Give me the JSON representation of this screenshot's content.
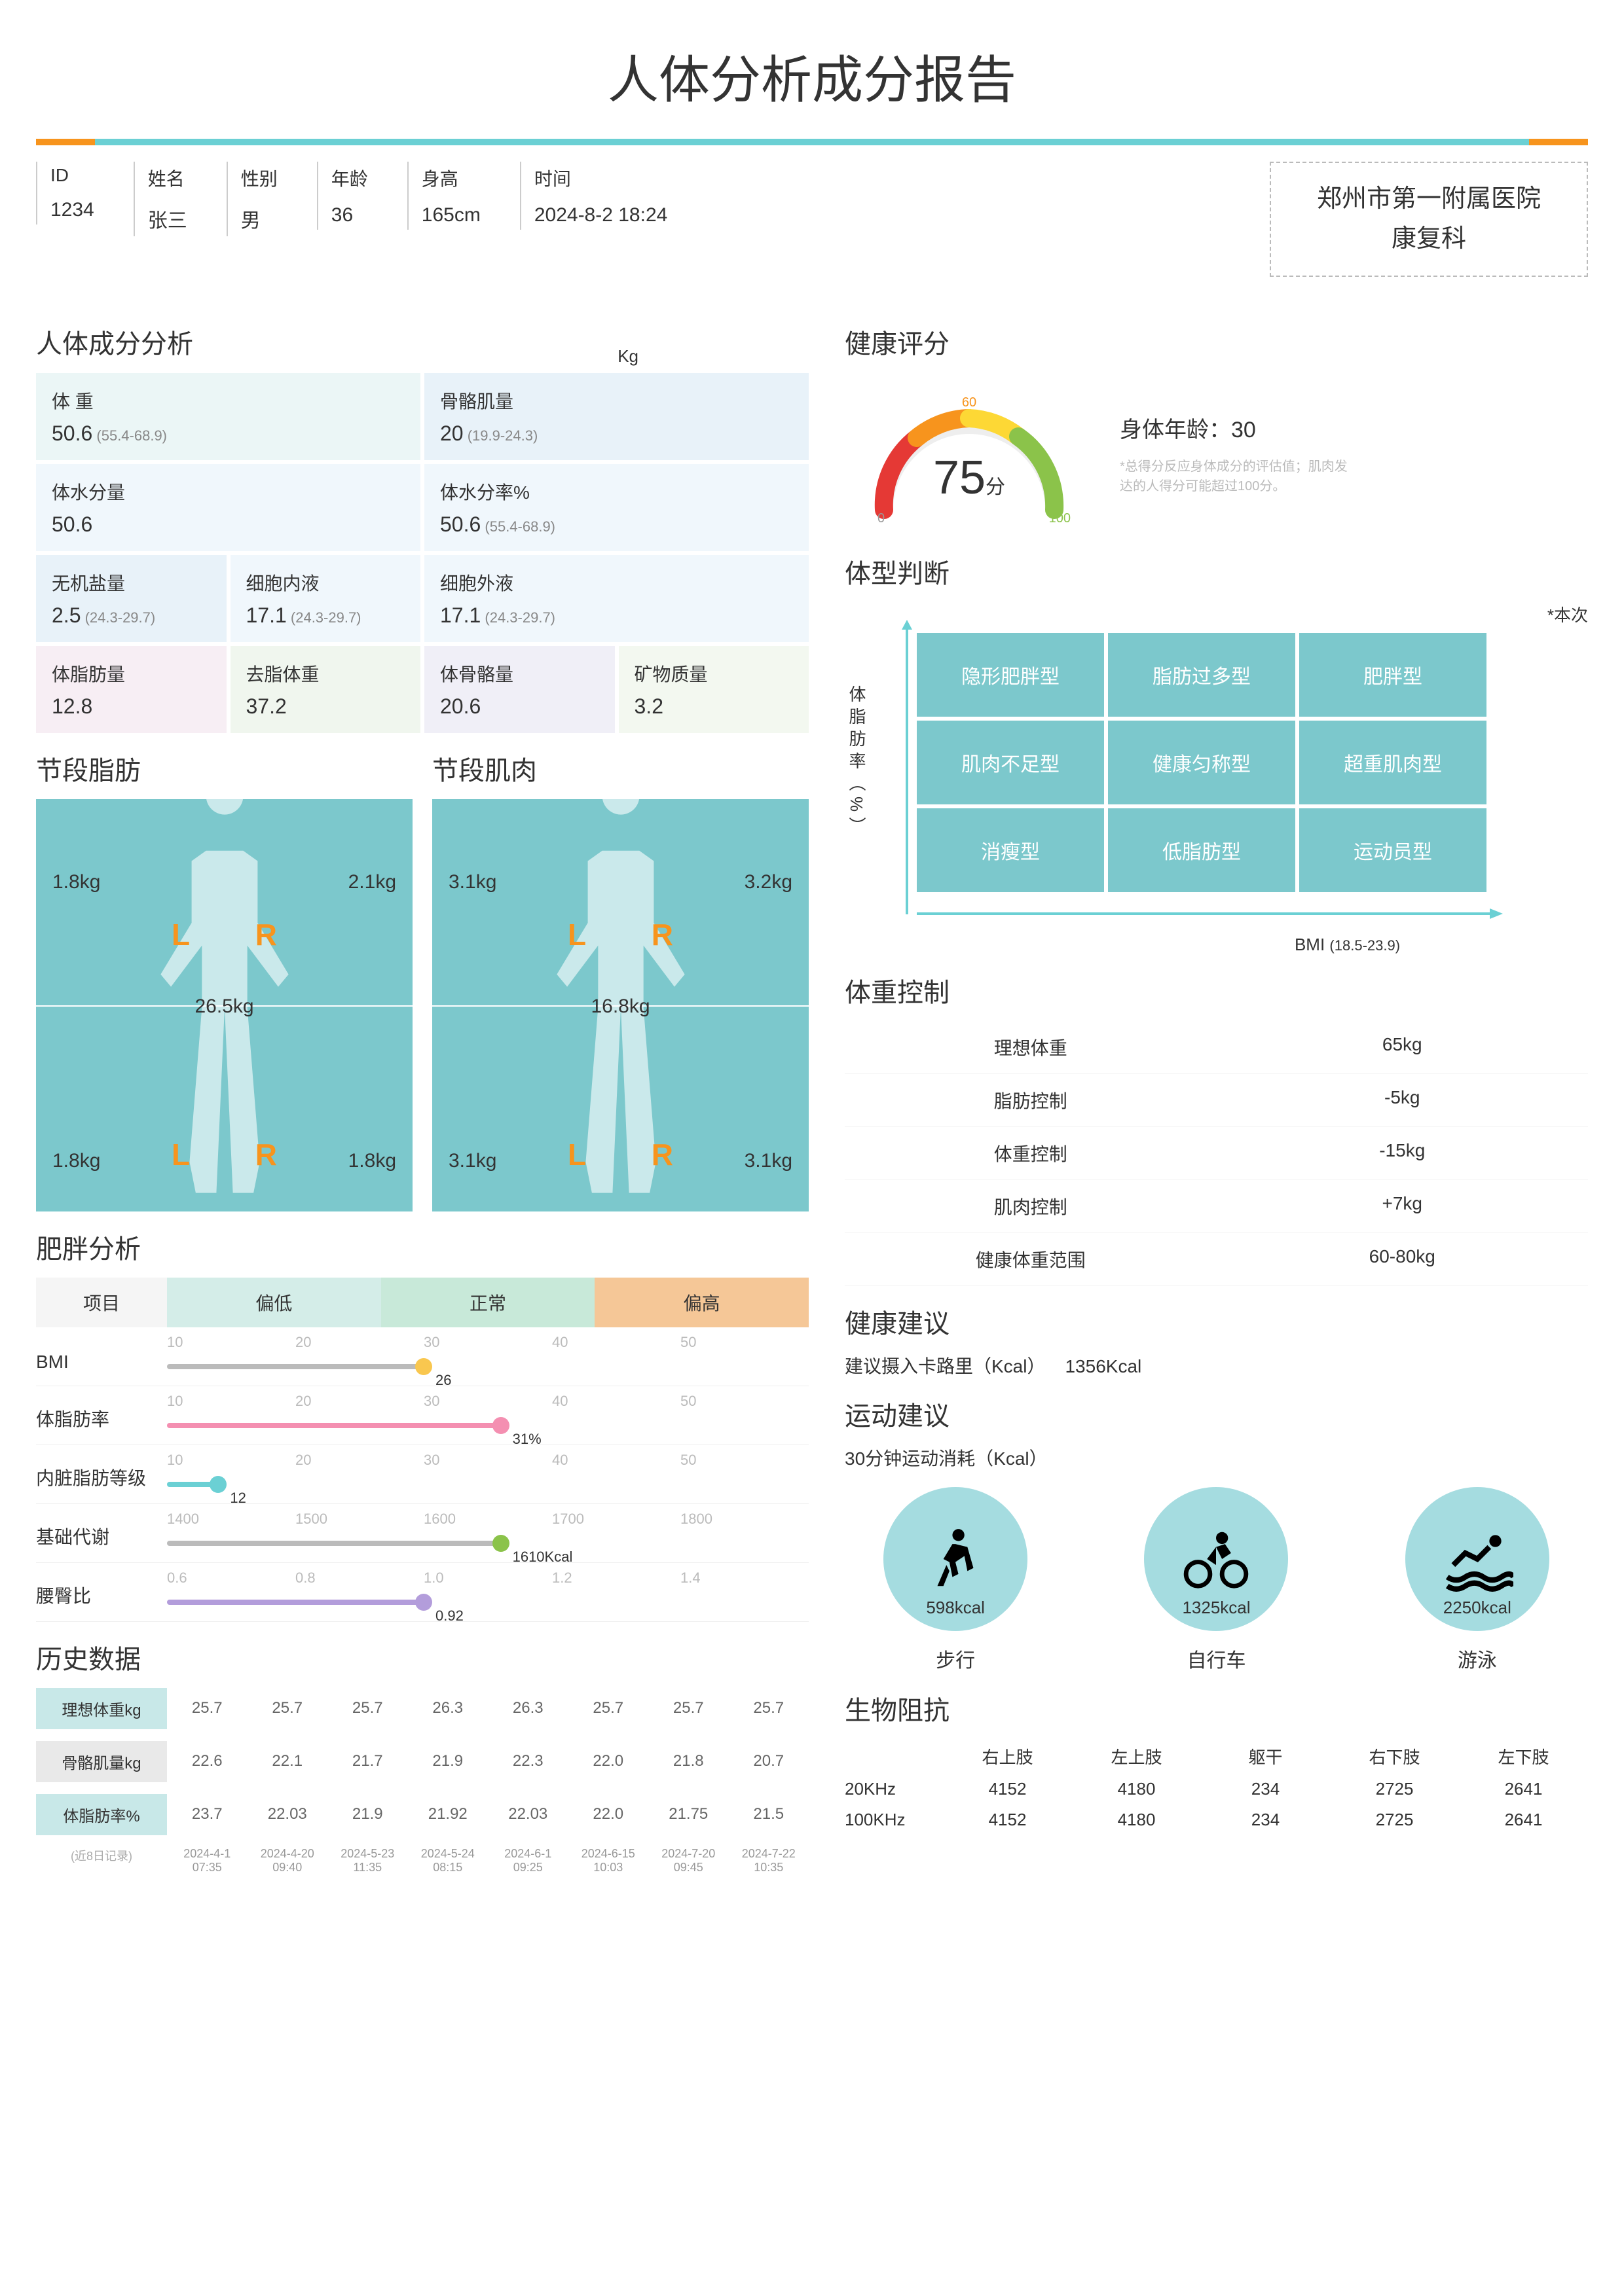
{
  "title": "人体分析成分报告",
  "colors": {
    "orange": "#f7941d",
    "teal": "#6bd0d4",
    "dark_teal": "#7cc8cc",
    "green": "#8bc34a",
    "red": "#e53935",
    "yellow": "#fdd835",
    "pink": "#f48fb1",
    "light_blue": "#90caf9",
    "purple": "#b39ddb"
  },
  "meta": {
    "id_label": "ID",
    "id_value": "1234",
    "name_label": "姓名",
    "name_value": "张三",
    "sex_label": "性别",
    "sex_value": "男",
    "age_label": "年龄",
    "age_value": "36",
    "height_label": "身高",
    "height_value": "165cm",
    "time_label": "时间",
    "time_value": "2024-8-2  18:24",
    "hospital_line1": "郑州市第一附属医院",
    "hospital_line2": "康复科"
  },
  "sections": {
    "composition": "人体成分分析",
    "unit": "Kg",
    "seg_fat": "节段脂肪",
    "seg_muscle": "节段肌肉",
    "obesity": "肥胖分析",
    "history": "历史数据",
    "health_score": "健康评分",
    "body_type": "体型判断",
    "this_time": "*本次",
    "weight_control": "体重控制",
    "health_advice": "健康建议",
    "exercise_advice": "运动建议",
    "bio_impedance": "生物阻抗"
  },
  "composition": [
    {
      "label": "体 重",
      "value": "50.6",
      "range": "(55.4-68.9)",
      "span": 2,
      "bg": "c-tealbg"
    },
    {
      "label": "骨骼肌量",
      "value": "20",
      "range": "(19.9-24.3)",
      "span": 2,
      "bg": "c-bluebg"
    },
    {
      "label": "体水分量",
      "value": "50.6",
      "range": "",
      "span": 2,
      "bg": "c-ltblue"
    },
    {
      "label": "体水分率%",
      "value": "50.6",
      "range": "(55.4-68.9)",
      "span": 2,
      "bg": "c-ltblue"
    },
    {
      "label": "无机盐量",
      "value": "2.5",
      "range": "(24.3-29.7)",
      "span": 1,
      "bg": "c-bluebg"
    },
    {
      "label": "细胞内液",
      "value": "17.1",
      "range": "(24.3-29.7)",
      "span": 1,
      "bg": "c-ltblue",
      "inline": true
    },
    {
      "label": "细胞外液",
      "value": "17.1",
      "range": "(24.3-29.7)",
      "span": 2,
      "bg": "c-ltblue",
      "inline": true
    },
    {
      "label": "体脂肪量",
      "value": "12.8",
      "range": "",
      "span": 1,
      "bg": "c-pinkbg"
    },
    {
      "label": "去脂体重",
      "value": "37.2",
      "range": "",
      "span": 1,
      "bg": "c-grnbg"
    },
    {
      "label": "体骨骼量",
      "value": "20.6",
      "range": "",
      "span": 1,
      "bg": "c-purplbg"
    },
    {
      "label": "矿物质量",
      "value": "3.2",
      "range": "",
      "span": 1,
      "bg": "c-ltgrn"
    }
  ],
  "seg_fat": {
    "ul": "1.8kg",
    "ur": "2.1kg",
    "trunk": "26.5kg",
    "ll": "1.8kg",
    "lr": "1.8kg"
  },
  "seg_muscle": {
    "ul": "3.1kg",
    "ur": "3.2kg",
    "trunk": "16.8kg",
    "ll": "3.1kg",
    "lr": "3.1kg"
  },
  "obesity": {
    "header_item": "项目",
    "header_low": "偏低",
    "header_normal": "正常",
    "header_high": "偏高",
    "rows": [
      {
        "label": "BMI",
        "ticks": [
          "10",
          "20",
          "30",
          "40",
          "50"
        ],
        "value": "26",
        "pos": 40,
        "color": "#f9c74f",
        "bar_color": "#bbb"
      },
      {
        "label": "体脂肪率",
        "ticks": [
          "10",
          "20",
          "30",
          "40",
          "50"
        ],
        "value": "31%",
        "pos": 52,
        "color": "#f48fb1",
        "bar_color": "#f48fb1"
      },
      {
        "label": "内脏脂肪等级",
        "ticks": [
          "10",
          "20",
          "30",
          "40",
          "50"
        ],
        "value": "12",
        "pos": 8,
        "color": "#6bd0d4",
        "bar_color": "#6bd0d4"
      },
      {
        "label": "基础代谢",
        "ticks": [
          "1400",
          "1500",
          "1600",
          "1700",
          "1800"
        ],
        "value": "1610Kcal",
        "pos": 52,
        "color": "#8bc34a",
        "bar_color": "#bbb"
      },
      {
        "label": "腰臀比",
        "ticks": [
          "0.6",
          "0.8",
          "1.0",
          "1.2",
          "1.4"
        ],
        "value": "0.92",
        "pos": 40,
        "color": "#b39ddb",
        "bar_color": "#b39ddb"
      }
    ]
  },
  "history": {
    "note": "(近8日记录)",
    "rows": [
      {
        "label": "理想体重kg",
        "style": "teal",
        "vals": [
          "25.7",
          "25.7",
          "25.7",
          "26.3",
          "26.3",
          "25.7",
          "25.7",
          "25.7"
        ]
      },
      {
        "label": "骨骼肌量kg",
        "style": "gray",
        "vals": [
          "22.6",
          "22.1",
          "21.7",
          "21.9",
          "22.3",
          "22.0",
          "21.8",
          "20.7"
        ]
      },
      {
        "label": "体脂肪率%",
        "style": "teal",
        "vals": [
          "23.7",
          "22.03",
          "21.9",
          "21.92",
          "22.03",
          "22.0",
          "21.75",
          "21.5"
        ]
      }
    ],
    "dates": [
      "2024-4-1\n07:35",
      "2024-4-20\n09:40",
      "2024-5-23\n11:35",
      "2024-5-24\n08:15",
      "2024-6-1\n09:25",
      "2024-6-15\n10:03",
      "2024-7-20\n09:45",
      "2024-7-22\n10:35"
    ]
  },
  "health_score": {
    "score": "75",
    "unit": "分",
    "min": "0",
    "mid": "60",
    "max": "100",
    "body_age_label": "身体年龄：",
    "body_age": "30",
    "note": "*总得分反应身体成分的评估值；肌肉发达的人得分可能超过100分。"
  },
  "body_type": {
    "y_label": "体脂肪率（%）",
    "x_label": "BMI",
    "x_range": "(18.5-23.9)",
    "cells": [
      "隐形肥胖型",
      "脂肪过多型",
      "肥胖型",
      "肌肉不足型",
      "健康匀称型",
      "超重肌肉型",
      "消瘦型",
      "低脂肪型",
      "运动员型"
    ]
  },
  "weight_control": [
    {
      "label": "理想体重",
      "value": "65kg"
    },
    {
      "label": "脂肪控制",
      "value": "-5kg"
    },
    {
      "label": "体重控制",
      "value": "-15kg"
    },
    {
      "label": "肌肉控制",
      "value": "+7kg"
    },
    {
      "label": "健康体重范围",
      "value": "60-80kg"
    }
  ],
  "health_advice": {
    "label": "建议摄入卡路里（Kcal）",
    "value": "1356Kcal"
  },
  "exercise": {
    "subtitle": "30分钟运动消耗（Kcal）",
    "items": [
      {
        "name": "步行",
        "kcal": "598kcal",
        "icon": "walk"
      },
      {
        "name": "自行车",
        "kcal": "1325kcal",
        "icon": "bike"
      },
      {
        "name": "游泳",
        "kcal": "2250kcal",
        "icon": "swim"
      }
    ]
  },
  "bio": {
    "headers": [
      "",
      "右上肢",
      "左上肢",
      "躯干",
      "右下肢",
      "左下肢"
    ],
    "rows": [
      {
        "freq": "20KHz",
        "vals": [
          "4152",
          "4180",
          "234",
          "2725",
          "2641"
        ]
      },
      {
        "freq": "100KHz",
        "vals": [
          "4152",
          "4180",
          "234",
          "2725",
          "2641"
        ]
      }
    ]
  }
}
